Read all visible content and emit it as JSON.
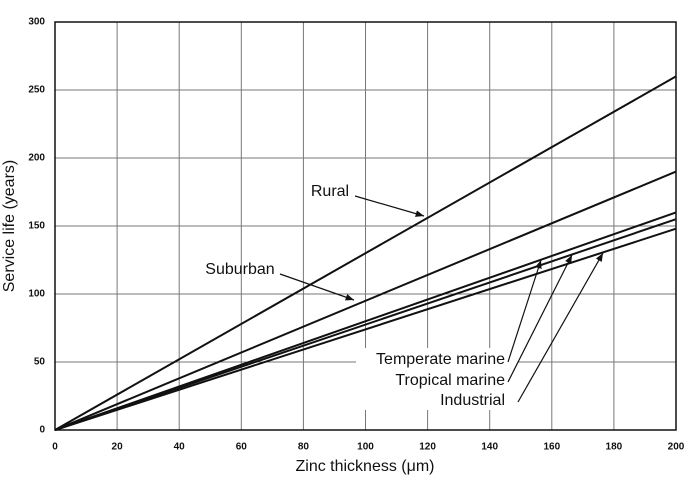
{
  "chart_data": {
    "type": "line",
    "x_label": "Zinc thickness (μm)",
    "y_label": "Service life (years)",
    "x": [
      0,
      200
    ],
    "series": [
      {
        "name": "Rural",
        "color": "#111111",
        "values": [
          0,
          260
        ]
      },
      {
        "name": "Suburban",
        "color": "#111111",
        "values": [
          0,
          190
        ]
      },
      {
        "name": "Temperate marine",
        "color": "#111111",
        "values": [
          0,
          160
        ]
      },
      {
        "name": "Tropical marine",
        "color": "#111111",
        "values": [
          0,
          155
        ]
      },
      {
        "name": "Industrial",
        "color": "#111111",
        "values": [
          0,
          148
        ]
      }
    ],
    "xlim": [
      0,
      200
    ],
    "xticks": [
      0,
      20,
      40,
      60,
      80,
      100,
      120,
      140,
      160,
      180,
      200
    ],
    "ylim": [
      0,
      300
    ],
    "yticks": [
      0,
      50,
      100,
      150,
      200,
      250,
      300
    ],
    "grid": true
  }
}
